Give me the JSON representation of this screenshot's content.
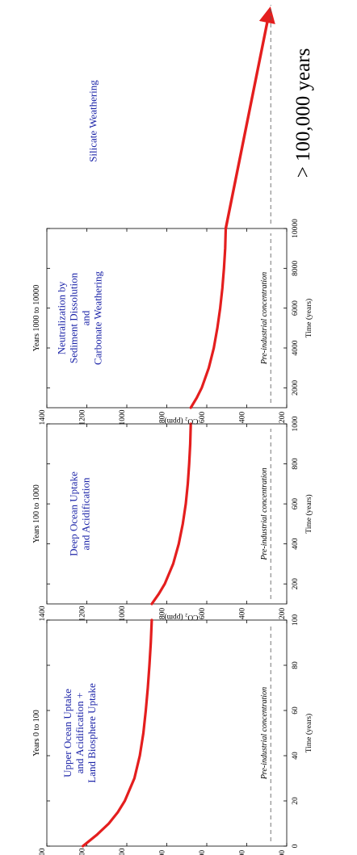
{
  "chart_data": [
    {
      "type": "line",
      "title": "Years  0 to 100",
      "annotation": [
        "Upper Ocean Uptake",
        "and Acidification +",
        "Land Biosphere Uptake"
      ],
      "xlabel": "Time (years)",
      "ylabel": "CO₂ (ppm)",
      "xlim": [
        0,
        100
      ],
      "ylim": [
        200,
        1400
      ],
      "xticks": [
        "0",
        "20",
        "40",
        "60",
        "80",
        "100"
      ],
      "yticks": [
        "200",
        "400",
        "600",
        "800",
        "1000",
        "1200",
        "1400"
      ],
      "reference": {
        "label": "Pre-industrial concentration",
        "y": 280
      },
      "series": [
        {
          "x": [
            0,
            5,
            10,
            15,
            20,
            30,
            40,
            50,
            60,
            70,
            80,
            90,
            100
          ],
          "y": [
            1220,
            1150,
            1090,
            1045,
            1010,
            962,
            935,
            917,
            905,
            895,
            887,
            880,
            875
          ]
        }
      ]
    },
    {
      "type": "line",
      "title": "Years 100 to 1000",
      "annotation": [
        "Deep Ocean Uptake",
        "and Acidification"
      ],
      "xlabel": "Time (years)",
      "ylabel": "CO₂ (ppm)",
      "xlim": [
        100,
        1000
      ],
      "ylim": [
        200,
        1400
      ],
      "xticks": [
        "200",
        "400",
        "600",
        "800",
        "1000"
      ],
      "yticks": [
        "200",
        "400",
        "600",
        "800",
        "1000",
        "1200",
        "1400"
      ],
      "reference": {
        "label": "Pre-industrial concentration",
        "y": 280
      },
      "series": [
        {
          "x": [
            100,
            150,
            200,
            300,
            400,
            500,
            600,
            700,
            800,
            900,
            1000
          ],
          "y": [
            875,
            840,
            810,
            768,
            740,
            720,
            705,
            695,
            688,
            683,
            680
          ]
        }
      ]
    },
    {
      "type": "line",
      "title": "Years 1000 to 10000",
      "annotation": [
        "Neutralization by",
        "Sediment Dissolution",
        "and",
        "Carbonate Weathering"
      ],
      "xlabel": "Time (years)",
      "ylabel": "CO₂ (ppm)",
      "xlim": [
        1000,
        10000
      ],
      "ylim": [
        200,
        1400
      ],
      "xticks": [
        "2000",
        "4000",
        "6000",
        "8000",
        "10000"
      ],
      "yticks": [
        "200",
        "400",
        "600",
        "800",
        "1000",
        "1200",
        "1400"
      ],
      "reference": {
        "label": "Pre-industrial concentration",
        "y": 280
      },
      "series": [
        {
          "x": [
            1000,
            1500,
            2000,
            3000,
            4000,
            5000,
            6000,
            7000,
            8000,
            9000,
            10000
          ],
          "y": [
            680,
            650,
            625,
            590,
            565,
            547,
            533,
            522,
            514,
            508,
            505
          ]
        }
      ]
    },
    {
      "type": "line",
      "annotation": [
        "Silicate Weathering"
      ],
      "big_label": "> 100,000 years",
      "series": [
        {
          "x": [
            10000,
            100000
          ],
          "y": [
            505,
            280
          ]
        }
      ]
    }
  ]
}
